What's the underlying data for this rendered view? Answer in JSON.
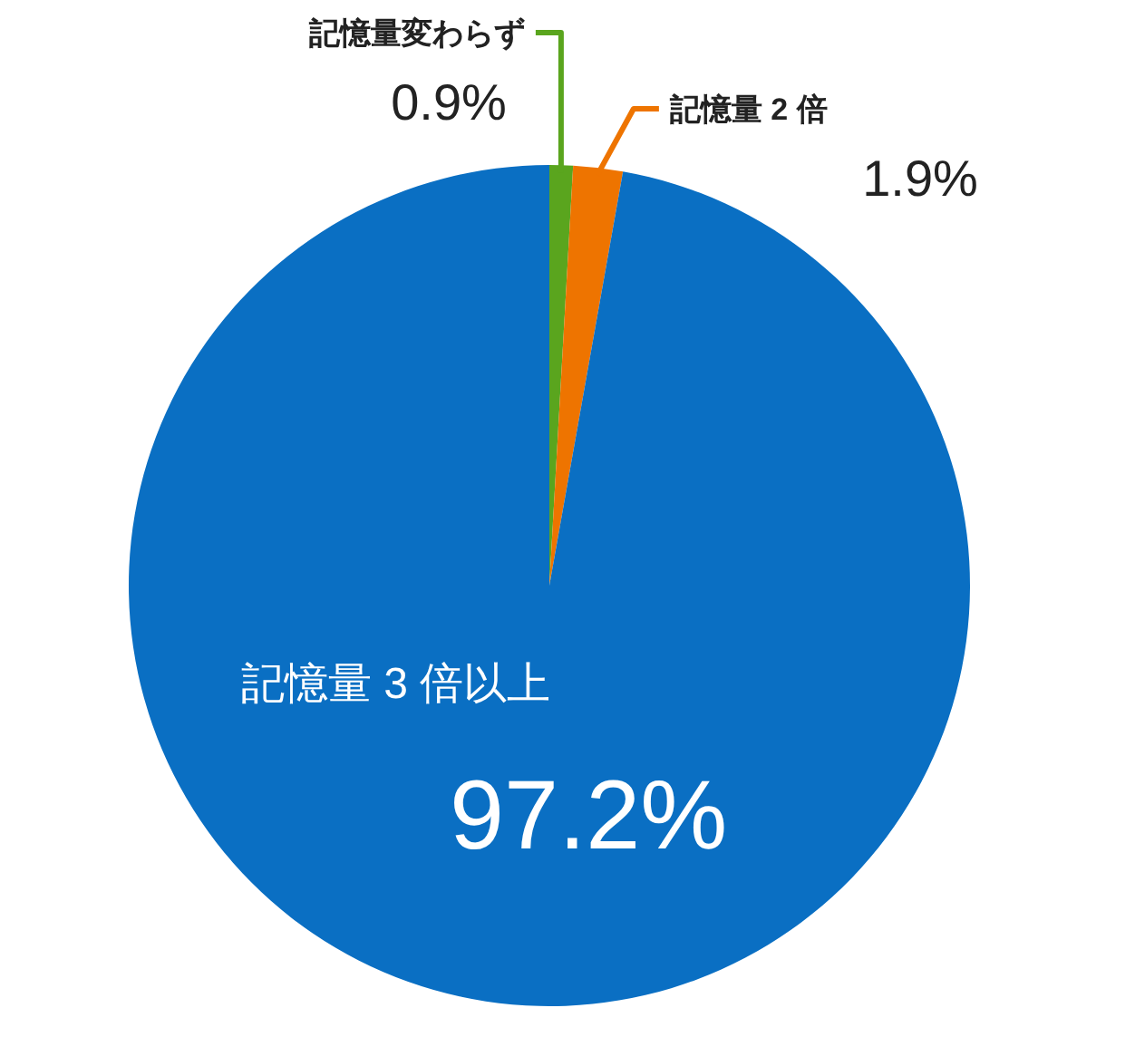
{
  "chart_data": {
    "type": "pie",
    "categories": [
      "記憶量変わらず",
      "記憶量 2 倍",
      "記憶量 3 倍以上"
    ],
    "values": [
      0.9,
      1.9,
      97.2
    ],
    "value_labels": [
      "0.9%",
      "1.9%",
      "97.2%"
    ],
    "colors": [
      "#5aa51e",
      "#ee7400",
      "#0a6fc3"
    ]
  }
}
